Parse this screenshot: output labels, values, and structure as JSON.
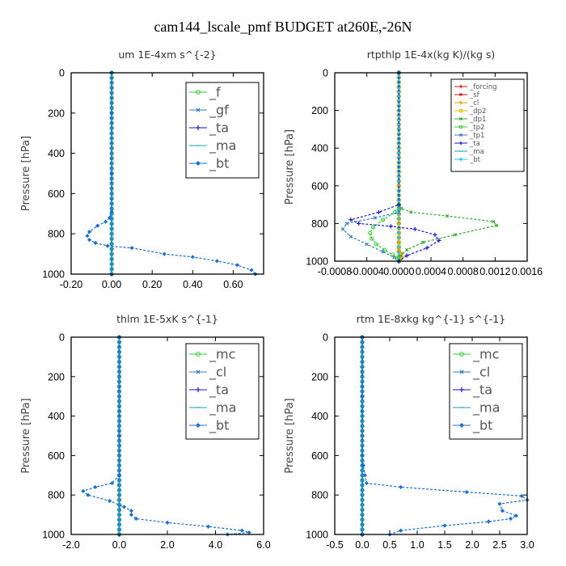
{
  "figure": {
    "title": "cam144_lscale_pmf  BUDGET at260E,-26N"
  },
  "chart_data": [
    {
      "type": "line",
      "title": "um   1E-4xm  s^{-2}",
      "ylabel": "Pressure [hPa]",
      "xlim": [
        -0.2,
        0.75
      ],
      "ylim": [
        1000,
        0
      ],
      "xticks": [
        "-0.20",
        "0.00",
        "0.20",
        "0.40",
        "0.60"
      ],
      "xtick_values": [
        -0.2,
        0.0,
        0.2,
        0.4,
        0.6
      ],
      "yticks": [
        "0",
        "200",
        "400",
        "600",
        "800",
        "1000"
      ],
      "ytick_values": [
        0,
        200,
        400,
        600,
        800,
        1000
      ],
      "legend": {
        "position": "top-right",
        "size": "large"
      },
      "series": [
        {
          "name": "_f",
          "color": "#33cc33",
          "marker": "circle",
          "x": [
            0,
            0,
            0,
            0,
            0,
            0,
            0,
            0,
            0,
            0,
            0
          ],
          "y": [
            0,
            100,
            200,
            300,
            400,
            500,
            600,
            700,
            800,
            900,
            1000
          ]
        },
        {
          "name": "_gf",
          "color": "#3a7fc0",
          "marker": "cross",
          "x": [
            0,
            0,
            0,
            0,
            0,
            0,
            0,
            0,
            0,
            0,
            0
          ],
          "y": [
            0,
            100,
            200,
            300,
            400,
            500,
            600,
            700,
            800,
            900,
            1000
          ]
        },
        {
          "name": "_ta",
          "color": "#1a1acc",
          "marker": "plus",
          "x": [
            0,
            0,
            0,
            0,
            0,
            0,
            0,
            0,
            0,
            0,
            0
          ],
          "y": [
            0,
            100,
            200,
            300,
            400,
            500,
            600,
            700,
            800,
            900,
            1000
          ]
        },
        {
          "name": "_ma",
          "color": "#1aa0c0",
          "marker": "dash",
          "x": [
            0,
            0,
            0,
            0,
            0,
            0,
            0,
            0,
            0,
            0,
            0
          ],
          "y": [
            0,
            100,
            200,
            300,
            400,
            500,
            600,
            700,
            800,
            900,
            1000
          ]
        },
        {
          "name": "_bt",
          "color": "#1a6fd0",
          "marker": "diamond",
          "x": [
            0,
            0,
            0,
            0,
            -0.01,
            -0.03,
            -0.07,
            -0.11,
            -0.12,
            -0.11,
            -0.08,
            -0.02,
            0.1,
            0.26,
            0.4,
            0.52,
            0.62,
            0.69,
            0.71
          ],
          "y": [
            0,
            200,
            500,
            690,
            720,
            740,
            760,
            790,
            810,
            830,
            845,
            860,
            870,
            900,
            915,
            935,
            955,
            980,
            1000
          ]
        }
      ]
    },
    {
      "type": "line",
      "title": "rtpthlp   1E-4x(kg K)/(kg s)",
      "ylabel": "Pressure [hPa]",
      "xlim": [
        -0.0008,
        0.0016
      ],
      "ylim": [
        1000,
        0
      ],
      "xticks": [
        "-0.0008",
        "-0.0004",
        "0.0000",
        "0.0004",
        "0.0008",
        "0.0012",
        "0.0016"
      ],
      "xtick_values": [
        -0.0008,
        -0.0004,
        0.0,
        0.0004,
        0.0008,
        0.0012,
        0.0016
      ],
      "yticks": [
        "0",
        "200",
        "400",
        "600",
        "800",
        "1000"
      ],
      "ytick_values": [
        0,
        200,
        400,
        600,
        800,
        1000
      ],
      "legend": {
        "position": "top-right",
        "size": "small"
      },
      "series": [
        {
          "name": "_forcing",
          "color": "#cc1a1a",
          "marker": "plus",
          "x": [
            0,
            0,
            0,
            0,
            0,
            0,
            0,
            0,
            0,
            0,
            0
          ],
          "y": [
            0,
            100,
            200,
            300,
            400,
            500,
            600,
            700,
            800,
            900,
            1000
          ]
        },
        {
          "name": "_sf",
          "color": "#cc1a1a",
          "marker": "cross",
          "x": [
            0,
            0,
            0,
            0,
            0,
            0,
            0,
            0,
            0,
            0,
            0
          ],
          "y": [
            0,
            100,
            200,
            300,
            400,
            500,
            600,
            700,
            800,
            900,
            1000
          ]
        },
        {
          "name": "_cl",
          "color": "#e0a000",
          "marker": "star",
          "x": [
            0,
            0,
            0,
            0,
            0,
            4e-05,
            4e-05,
            2e-05,
            0
          ],
          "y": [
            0,
            600,
            800,
            900,
            940,
            960,
            975,
            990,
            1000
          ]
        },
        {
          "name": "_dp2",
          "color": "#e8c000",
          "marker": "square",
          "x": [
            0,
            0,
            0,
            0,
            0,
            0,
            0,
            0,
            0,
            0,
            0
          ],
          "y": [
            0,
            100,
            200,
            300,
            400,
            500,
            600,
            700,
            800,
            900,
            1000
          ]
        },
        {
          "name": "_dp1",
          "color": "#33aa33",
          "marker": "cross",
          "x": [
            0,
            0,
            3e-05,
            0.00015,
            0.0006,
            0.00118,
            0.00122,
            0.0007,
            0.0003,
            0.0001,
            2e-05,
            0
          ],
          "y": [
            0,
            700,
            720,
            740,
            760,
            790,
            810,
            860,
            900,
            940,
            970,
            1000
          ]
        },
        {
          "name": "_tp2",
          "color": "#33cc33",
          "marker": "circle",
          "x": [
            0,
            0,
            -5e-05,
            -0.0002,
            -0.00032,
            -0.00036,
            -0.00034,
            -0.00028,
            -0.00018,
            -8e-05,
            -2e-05,
            0
          ],
          "y": [
            0,
            700,
            740,
            780,
            820,
            850,
            880,
            910,
            940,
            965,
            985,
            1000
          ]
        },
        {
          "name": "_tp1",
          "color": "#3a7fc0",
          "marker": "cross",
          "x": [
            0,
            0,
            -0.0003,
            -0.00065,
            -0.0007,
            -0.0006,
            -0.0004,
            -0.0002,
            -6e-05,
            0
          ],
          "y": [
            0,
            740,
            770,
            800,
            830,
            870,
            910,
            950,
            980,
            1000
          ]
        },
        {
          "name": "_ta",
          "color": "#1a1acc",
          "marker": "plus",
          "x": [
            0,
            0,
            -0.00025,
            -0.0006,
            -0.0005,
            -0.0001,
            0.0002,
            0.00045,
            0.0005,
            0.00035,
            0.0001,
            0
          ],
          "y": [
            0,
            700,
            740,
            780,
            800,
            815,
            830,
            860,
            890,
            930,
            970,
            1000
          ]
        },
        {
          "name": "_ma",
          "color": "#1aa0c0",
          "marker": "dash",
          "x": [
            0,
            0,
            0,
            0,
            0,
            0,
            0,
            0,
            0,
            0,
            0
          ],
          "y": [
            0,
            100,
            200,
            300,
            400,
            500,
            600,
            700,
            800,
            900,
            1000
          ]
        },
        {
          "name": "_bt",
          "color": "#1ac8e8",
          "marker": "diamond",
          "x": [
            0,
            0,
            0,
            0,
            0,
            0,
            0,
            0,
            0,
            0,
            0
          ],
          "y": [
            0,
            100,
            200,
            300,
            400,
            500,
            600,
            700,
            800,
            900,
            1000
          ]
        }
      ]
    },
    {
      "type": "line",
      "title": "thlm   1E-5xK  s^{-1}",
      "ylabel": "Pressure [hPa]",
      "xlim": [
        -2.0,
        6.0
      ],
      "ylim": [
        1000,
        0
      ],
      "xticks": [
        "-2.0",
        "0.0",
        "2.0",
        "4.0",
        "6.0"
      ],
      "xtick_values": [
        -2.0,
        0.0,
        2.0,
        4.0,
        6.0
      ],
      "yticks": [
        "0",
        "200",
        "400",
        "600",
        "800",
        "1000"
      ],
      "ytick_values": [
        0,
        200,
        400,
        600,
        800,
        1000
      ],
      "legend": {
        "position": "top-right",
        "size": "large"
      },
      "series": [
        {
          "name": "_mc",
          "color": "#33cc33",
          "marker": "circle",
          "x": [
            0,
            0,
            0,
            0,
            0,
            0,
            0,
            0,
            0,
            0,
            0
          ],
          "y": [
            0,
            100,
            200,
            300,
            400,
            500,
            600,
            700,
            800,
            900,
            1000
          ]
        },
        {
          "name": "_cl",
          "color": "#3a7fc0",
          "marker": "cross",
          "x": [
            0,
            0,
            0,
            0,
            0,
            0,
            0,
            0,
            0,
            0,
            0
          ],
          "y": [
            0,
            100,
            200,
            300,
            400,
            500,
            600,
            700,
            800,
            900,
            1000
          ]
        },
        {
          "name": "_ta",
          "color": "#1a1acc",
          "marker": "plus",
          "x": [
            0,
            0,
            0,
            0,
            0,
            0,
            0,
            0,
            0,
            0,
            0
          ],
          "y": [
            0,
            100,
            200,
            300,
            400,
            500,
            600,
            700,
            800,
            900,
            1000
          ]
        },
        {
          "name": "_ma",
          "color": "#1aa0c0",
          "marker": "dash",
          "x": [
            0,
            0,
            0,
            0,
            0,
            0,
            0,
            0,
            0,
            0,
            0
          ],
          "y": [
            0,
            100,
            200,
            300,
            400,
            500,
            600,
            700,
            800,
            900,
            1000
          ]
        },
        {
          "name": "_bt",
          "color": "#1a6fd0",
          "marker": "diamond",
          "x": [
            0,
            0,
            0,
            -0.3,
            -1.0,
            -1.5,
            -1.3,
            -0.4,
            0.2,
            0.5,
            0.5,
            0.7,
            2.0,
            3.7,
            5.1,
            5.4,
            4.5
          ],
          "y": [
            0,
            500,
            700,
            740,
            760,
            780,
            800,
            830,
            860,
            880,
            900,
            920,
            940,
            960,
            980,
            990,
            1000
          ]
        }
      ]
    },
    {
      "type": "line",
      "title": "rtm   1E-8xkg  kg^{-1}  s^{-1}",
      "ylabel": "Pressure [hPa]",
      "xlim": [
        -0.5,
        3.0
      ],
      "ylim": [
        1000,
        0
      ],
      "xticks": [
        "-0.5",
        "0.0",
        "0.5",
        "1.0",
        "1.5",
        "2.0",
        "2.5",
        "3.0"
      ],
      "xtick_values": [
        -0.5,
        0.0,
        0.5,
        1.0,
        1.5,
        2.0,
        2.5,
        3.0
      ],
      "yticks": [
        "0",
        "200",
        "400",
        "600",
        "800",
        "1000"
      ],
      "ytick_values": [
        0,
        200,
        400,
        600,
        800,
        1000
      ],
      "legend": {
        "position": "top-right",
        "size": "large"
      },
      "series": [
        {
          "name": "_mc",
          "color": "#33cc33",
          "marker": "circle",
          "x": [
            0,
            0,
            0,
            0,
            0,
            0,
            0,
            0,
            0,
            0,
            0
          ],
          "y": [
            0,
            100,
            200,
            300,
            400,
            500,
            600,
            700,
            800,
            900,
            1000
          ]
        },
        {
          "name": "_cl",
          "color": "#3a7fc0",
          "marker": "cross",
          "x": [
            0,
            0,
            0,
            0,
            0,
            0,
            0,
            0,
            0,
            0,
            0
          ],
          "y": [
            0,
            100,
            200,
            300,
            400,
            500,
            600,
            700,
            800,
            900,
            1000
          ]
        },
        {
          "name": "_ta",
          "color": "#1a1acc",
          "marker": "plus",
          "x": [
            0,
            0,
            0,
            0,
            0,
            0,
            0,
            0,
            0,
            0,
            0
          ],
          "y": [
            0,
            100,
            200,
            300,
            400,
            500,
            600,
            700,
            800,
            900,
            1000
          ]
        },
        {
          "name": "_ma",
          "color": "#1aa0c0",
          "marker": "dash",
          "x": [
            0,
            0,
            0,
            0,
            0,
            0,
            0,
            0,
            0,
            0,
            0
          ],
          "y": [
            0,
            100,
            200,
            300,
            400,
            500,
            600,
            700,
            800,
            900,
            1000
          ]
        },
        {
          "name": "_bt",
          "color": "#1a6fd0",
          "marker": "diamond",
          "x": [
            0,
            0,
            0,
            0.02,
            0.05,
            0.08,
            0.7,
            1.9,
            2.9,
            3.0,
            2.5,
            2.55,
            2.8,
            2.7,
            2.3,
            1.5,
            0.7,
            0.5
          ],
          "y": [
            0,
            300,
            600,
            650,
            700,
            740,
            760,
            785,
            805,
            825,
            845,
            880,
            905,
            920,
            935,
            955,
            980,
            1000
          ]
        }
      ]
    }
  ]
}
